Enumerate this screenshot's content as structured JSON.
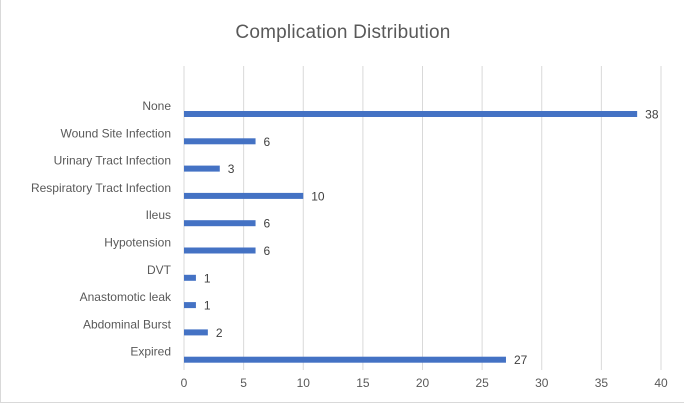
{
  "chart_data": {
    "type": "bar",
    "orientation": "horizontal",
    "title": "Complication Distribution",
    "categories": [
      "None",
      "Wound Site Infection",
      "Urinary Tract Infection",
      "Respiratory Tract Infection",
      "Ileus",
      "Hypotension",
      "DVT",
      "Anastomotic leak",
      "Abdominal Burst",
      "Expired"
    ],
    "values": [
      38,
      6,
      3,
      10,
      6,
      6,
      1,
      1,
      2,
      27
    ],
    "xticks": [
      "0",
      "5",
      "10",
      "15",
      "20",
      "25",
      "30",
      "35",
      "40"
    ],
    "xlim": [
      0,
      40
    ],
    "xlabel": "",
    "ylabel": "",
    "grid": "vertical",
    "legend": "none",
    "bar_color": "#4472c4",
    "grid_color": "#d9d9d9",
    "text_color": "#595959"
  }
}
